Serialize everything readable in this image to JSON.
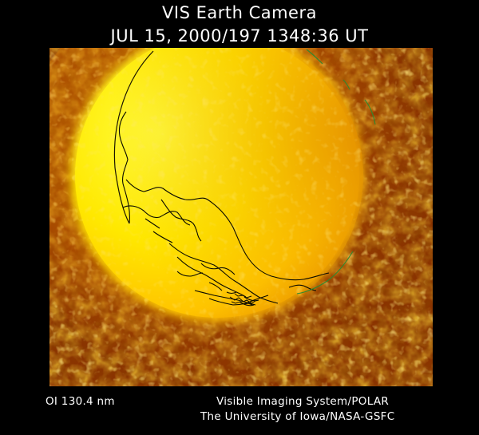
{
  "header": {
    "title": "VIS Earth Camera",
    "subtitle": "JUL 15, 2000/197 1348:36 UT"
  },
  "image": {
    "subject": "Earth disk imaged in far-ultraviolet with coastline overlay",
    "colormap": [
      "#3a0a00",
      "#8a3000",
      "#d07000",
      "#f0a800",
      "#ffe000",
      "#ffff30"
    ]
  },
  "footer": {
    "wavelength": "OI  130.4 nm",
    "instrument": "Visible Imaging System/POLAR",
    "institution": "The University of Iowa/NASA-GSFC"
  }
}
